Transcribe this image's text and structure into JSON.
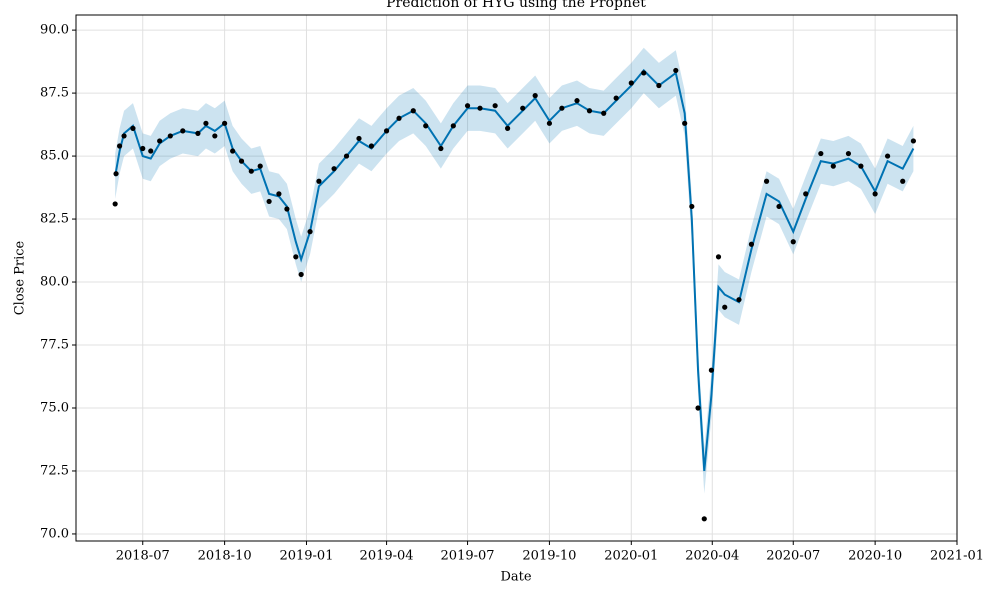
{
  "chart_data": {
    "type": "line",
    "title": "Prediction of HYG  using the Prophet",
    "x_label": "Date",
    "y_label": "Close Price",
    "x": [
      "2018-05-31",
      "2018-06-01",
      "2018-06-05",
      "2018-06-10",
      "2018-06-20",
      "2018-07-01",
      "2018-07-10",
      "2018-07-20",
      "2018-08-01",
      "2018-08-15",
      "2018-09-01",
      "2018-09-10",
      "2018-09-20",
      "2018-10-01",
      "2018-10-10",
      "2018-10-20",
      "2018-10-31",
      "2018-11-10",
      "2018-11-20",
      "2018-12-01",
      "2018-12-10",
      "2018-12-20",
      "2018-12-26",
      "2019-01-05",
      "2019-01-15",
      "2019-02-01",
      "2019-02-15",
      "2019-03-01",
      "2019-03-15",
      "2019-04-01",
      "2019-04-15",
      "2019-05-01",
      "2019-05-15",
      "2019-06-01",
      "2019-06-15",
      "2019-07-01",
      "2019-07-15",
      "2019-08-01",
      "2019-08-15",
      "2019-09-01",
      "2019-09-15",
      "2019-10-01",
      "2019-10-15",
      "2019-11-01",
      "2019-11-15",
      "2019-12-01",
      "2019-12-15",
      "2020-01-01",
      "2020-01-15",
      "2020-02-01",
      "2020-02-20",
      "2020-03-01",
      "2020-03-09",
      "2020-03-16",
      "2020-03-23",
      "2020-03-31",
      "2020-04-08",
      "2020-04-15",
      "2020-05-01",
      "2020-05-15",
      "2020-06-01",
      "2020-06-15",
      "2020-07-01",
      "2020-07-15",
      "2020-08-01",
      "2020-08-15",
      "2020-09-01",
      "2020-09-15",
      "2020-10-01",
      "2020-10-15",
      "2020-11-01",
      "2020-11-13"
    ],
    "series": [
      {
        "style": "points",
        "color": "#000000",
        "values": [
          83.1,
          84.3,
          85.4,
          85.8,
          86.1,
          85.3,
          85.2,
          85.6,
          85.8,
          86.0,
          85.9,
          86.3,
          85.8,
          86.3,
          85.2,
          84.8,
          84.4,
          84.6,
          83.2,
          83.5,
          82.9,
          81.0,
          80.3,
          82.0,
          84.0,
          84.5,
          85.0,
          85.7,
          85.4,
          86.0,
          86.5,
          86.8,
          86.2,
          85.3,
          86.2,
          87.0,
          86.9,
          87.0,
          86.1,
          86.9,
          87.4,
          86.3,
          86.9,
          87.2,
          86.8,
          86.7,
          87.3,
          87.9,
          88.3,
          87.8,
          88.4,
          86.3,
          83.0,
          75.0,
          70.6,
          76.5,
          81.0,
          79.0,
          79.3,
          81.5,
          84.0,
          83.0,
          81.6,
          83.5,
          85.1,
          84.6,
          85.1,
          84.6,
          83.5,
          85.0,
          84.0,
          85.6
        ]
      },
      {
        "style": "line",
        "color": "#0072b2",
        "values": [
          84.2,
          84.4,
          85.2,
          85.9,
          86.2,
          85.0,
          84.9,
          85.5,
          85.8,
          86.0,
          85.9,
          86.2,
          86.0,
          86.3,
          85.3,
          84.8,
          84.4,
          84.5,
          83.5,
          83.4,
          83.0,
          81.6,
          80.9,
          82.0,
          83.8,
          84.4,
          85.0,
          85.6,
          85.3,
          86.0,
          86.5,
          86.8,
          86.3,
          85.4,
          86.2,
          86.9,
          86.9,
          86.8,
          86.2,
          86.8,
          87.3,
          86.4,
          86.9,
          87.1,
          86.8,
          86.7,
          87.2,
          87.8,
          88.4,
          87.8,
          88.3,
          86.7,
          82.5,
          76.5,
          72.5,
          75.5,
          79.8,
          79.5,
          79.2,
          81.3,
          83.5,
          83.2,
          82.0,
          83.3,
          84.8,
          84.7,
          84.9,
          84.6,
          83.6,
          84.8,
          84.5,
          85.3
        ]
      }
    ],
    "band": {
      "color": "#0072b2",
      "lower": [
        83.3,
        83.5,
        84.3,
        85.0,
        85.3,
        84.1,
        84.0,
        84.6,
        84.9,
        85.1,
        85.0,
        85.3,
        85.1,
        85.4,
        84.4,
        83.9,
        83.5,
        83.6,
        82.6,
        82.5,
        82.1,
        80.7,
        80.0,
        81.1,
        82.9,
        83.5,
        84.1,
        84.7,
        84.4,
        85.1,
        85.6,
        85.9,
        85.4,
        84.5,
        85.3,
        86.0,
        86.0,
        85.9,
        85.3,
        85.9,
        86.4,
        85.5,
        86.0,
        86.2,
        85.9,
        85.8,
        86.3,
        86.9,
        87.5,
        86.9,
        87.4,
        85.8,
        81.6,
        75.6,
        71.6,
        74.6,
        78.9,
        78.6,
        78.3,
        80.4,
        82.6,
        82.3,
        81.1,
        82.4,
        83.9,
        83.8,
        84.0,
        83.7,
        82.7,
        83.9,
        83.6,
        84.4
      ],
      "upper": [
        85.1,
        85.3,
        86.1,
        86.8,
        87.1,
        85.9,
        85.8,
        86.4,
        86.7,
        86.9,
        86.8,
        87.1,
        86.9,
        87.2,
        86.2,
        85.7,
        85.3,
        85.4,
        84.4,
        84.3,
        83.9,
        82.5,
        81.8,
        82.9,
        84.7,
        85.3,
        85.9,
        86.5,
        86.2,
        86.9,
        87.4,
        87.7,
        87.2,
        86.3,
        87.1,
        87.8,
        87.8,
        87.7,
        87.1,
        87.7,
        88.2,
        87.3,
        87.8,
        88.0,
        87.7,
        87.6,
        88.1,
        88.7,
        89.3,
        88.7,
        89.2,
        87.6,
        83.4,
        77.4,
        73.4,
        76.4,
        80.7,
        80.4,
        80.1,
        82.2,
        84.4,
        84.1,
        82.9,
        84.2,
        85.7,
        85.6,
        85.8,
        85.5,
        84.5,
        85.7,
        85.4,
        86.2
      ]
    },
    "xlim": [
      "2018-04-17",
      "2021-01-01"
    ],
    "xticks": [
      "2018-07",
      "2018-10",
      "2019-01",
      "2019-04",
      "2019-07",
      "2019-10",
      "2020-01",
      "2020-04",
      "2020-07",
      "2020-10",
      "2021-01"
    ],
    "ylim": [
      69.72,
      90.6
    ],
    "yticks": [
      {
        "value": 70,
        "label": "70.0"
      },
      {
        "value": 72.5,
        "label": "72.5"
      },
      {
        "value": 75,
        "label": "75.0"
      },
      {
        "value": 77.5,
        "label": "77.5"
      },
      {
        "value": 80,
        "label": "80.0"
      },
      {
        "value": 82.5,
        "label": "82.5"
      },
      {
        "value": 85,
        "label": "85.0"
      },
      {
        "value": 87.5,
        "label": "87.5"
      },
      {
        "value": 90,
        "label": "90.0"
      }
    ],
    "grid": true
  }
}
